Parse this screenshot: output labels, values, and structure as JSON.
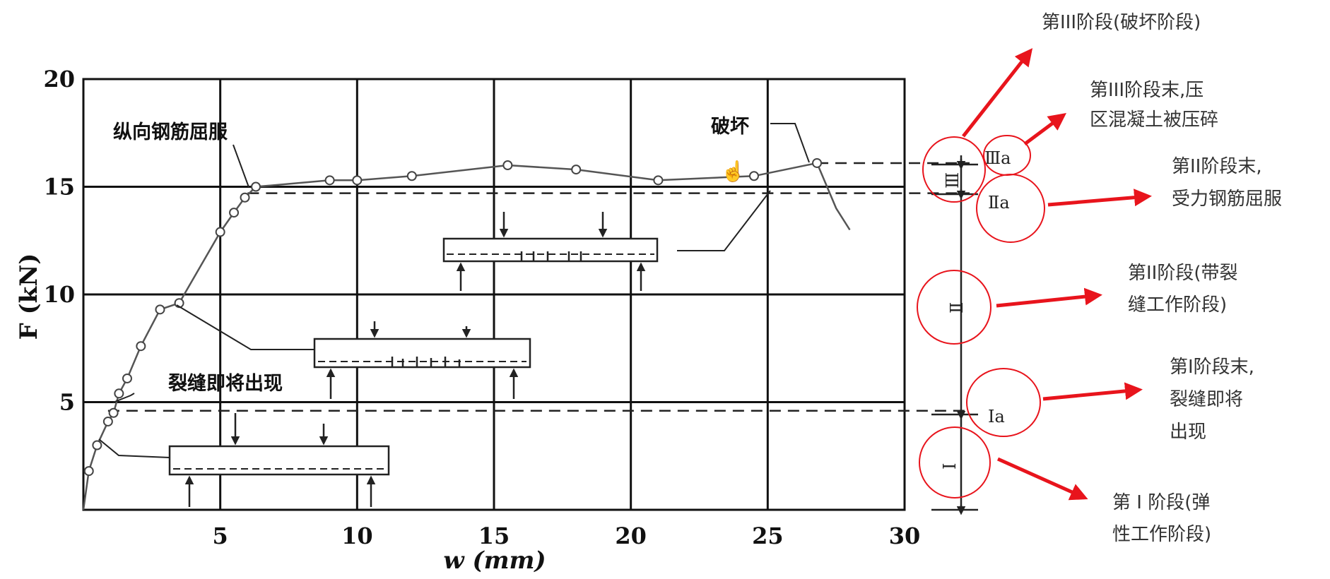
{
  "chart_data": {
    "type": "line",
    "title": "",
    "xlabel": "w (mm)",
    "ylabel": "F (kN)",
    "xlim": [
      0,
      30
    ],
    "ylim": [
      0,
      20
    ],
    "x_ticks": [
      "5",
      "10",
      "15",
      "20",
      "25",
      "30"
    ],
    "y_ticks": [
      "5",
      "10",
      "15",
      "20"
    ],
    "grid": true,
    "series": [
      {
        "x": [
          0,
          0.2,
          0.5,
          0.9,
          1.1,
          1.3,
          1.6,
          2.1,
          2.8,
          3.5,
          5.0,
          5.5,
          5.9,
          6.3,
          9.0,
          10.0,
          12.0,
          15.5,
          18.0,
          21.0,
          24.5,
          26.8,
          27.5,
          28.0
        ],
        "y": [
          0,
          1.8,
          3.0,
          4.1,
          4.5,
          5.4,
          6.1,
          7.6,
          9.3,
          9.6,
          12.9,
          13.8,
          14.5,
          15.0,
          15.3,
          15.3,
          15.5,
          16.0,
          15.8,
          15.3,
          15.5,
          16.1,
          14.0,
          13.0
        ]
      }
    ],
    "thresholds": {
      "cracking_load": 4.6,
      "yield_load": 14.7,
      "ultimate_load": 16.1
    },
    "annotations": {
      "yield": "纵向钢筋屈服",
      "failure": "破坏",
      "crack": "裂缝即将出现"
    }
  },
  "stage_bar": {
    "labels": {
      "stage1": "Ⅰ",
      "stage1a": "Ⅰa",
      "stage2": "Ⅱ",
      "stage2a": "Ⅱa",
      "stage3": "Ⅲ",
      "stage3a": "Ⅲa"
    },
    "descriptions": {
      "stage3_line1": "第III阶段(破坏阶段)",
      "stage3a_line1": "第III阶段末,压",
      "stage3a_line2": "区混凝土被压碎",
      "stage2a_line1": "第II阶段末,",
      "stage2a_line2": "受力钢筋屈服",
      "stage2_line1": "第II阶段(带裂",
      "stage2_line2": "缝工作阶段)",
      "stage1a_line1": "第I阶段末,",
      "stage1a_line2": "裂缝即将",
      "stage1a_line3": "出现",
      "stage1_line1": "第 I 阶段(弹",
      "stage1_line2": "性工作阶段)"
    }
  },
  "colors": {
    "axis": "#111111",
    "curve": "#555555",
    "arrow": "#e8141c",
    "circle": "#e8141c"
  }
}
